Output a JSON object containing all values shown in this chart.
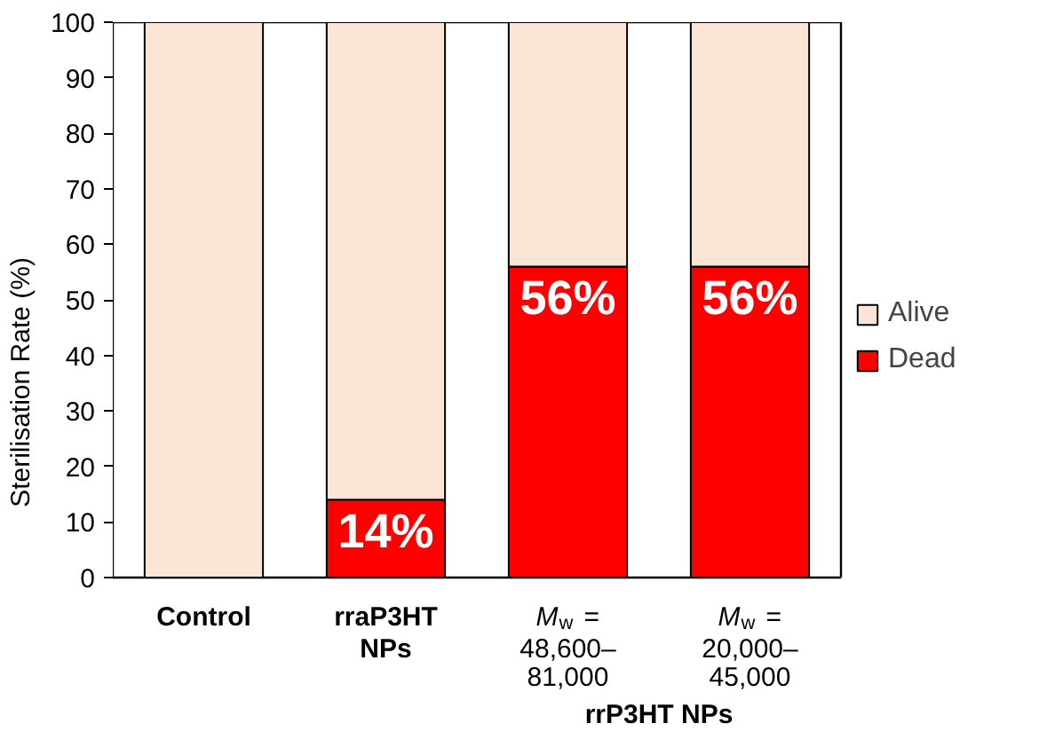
{
  "chart_data": {
    "type": "bar",
    "stacked": true,
    "ylabel": "Sterilisation Rate (%)",
    "categories": [
      "Control",
      "rraP3HT NPs",
      "M$_{w}$ = 48,600–81,000",
      "M$_{w}$ = 20,000–45,000"
    ],
    "series": [
      {
        "name": "Dead",
        "color": "#ff0000",
        "values": [
          0,
          14,
          56,
          56
        ],
        "value_labels": [
          null,
          "14%",
          "56%",
          "56%"
        ]
      },
      {
        "name": "Alive",
        "color": "#fbe5d6",
        "values": [
          100,
          86,
          44,
          44
        ]
      }
    ],
    "ylim": [
      0,
      100
    ],
    "yticks": [
      0,
      10,
      20,
      30,
      40,
      50,
      60,
      70,
      80,
      90,
      100
    ],
    "grid": false,
    "legend": "right",
    "annotations": [
      "rrP3HT NPs"
    ]
  }
}
